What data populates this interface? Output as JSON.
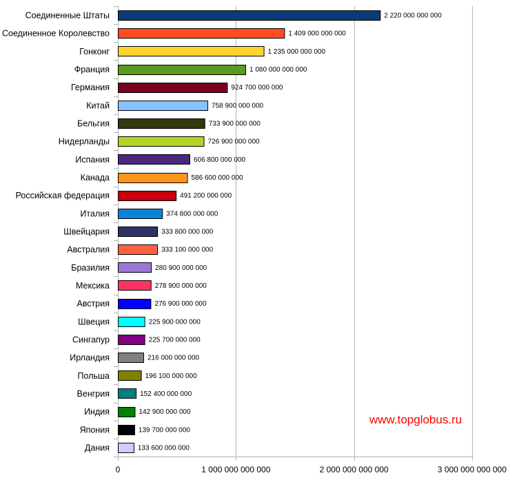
{
  "watermark": "www.topglobus.ru",
  "chart_data": {
    "type": "bar",
    "orientation": "horizontal",
    "title": "",
    "xlabel": "",
    "ylabel": "",
    "xlim": [
      0,
      3000000000000
    ],
    "grid": true,
    "legend": "none",
    "ticks": [
      {
        "value": 0,
        "label": "0"
      },
      {
        "value": 1000000000000,
        "label": "1 000 000 000 000"
      },
      {
        "value": 2000000000000,
        "label": "2 000 000 000 000"
      },
      {
        "value": 3000000000000,
        "label": "3 000 000 000 000"
      }
    ],
    "bars": [
      {
        "category": "Соединенные Штаты",
        "value": 2220000000000,
        "label": "2 220 000 000 000",
        "color": "#0b3c7a"
      },
      {
        "category": "Соединенное Королевство",
        "value": 1409000000000,
        "label": "1 409 000 000 000",
        "color": "#ff4b1f"
      },
      {
        "category": "Гонконг",
        "value": 1235000000000,
        "label": "1 235 000 000 000",
        "color": "#ffd32a"
      },
      {
        "category": "Франция",
        "value": 1080000000000,
        "label": "1 080 000 000 000",
        "color": "#5a9a1e"
      },
      {
        "category": "Германия",
        "value": 924700000000,
        "label": "924 700 000 000",
        "color": "#7a0022"
      },
      {
        "category": "Китай",
        "value": 758900000000,
        "label": "758 900 000 000",
        "color": "#86c2ff"
      },
      {
        "category": "Бельгия",
        "value": 733900000000,
        "label": "733 900 000 000",
        "color": "#2f3a0d"
      },
      {
        "category": "Нидерланды",
        "value": 726900000000,
        "label": "726 900 000 000",
        "color": "#b2d524"
      },
      {
        "category": "Испания",
        "value": 606800000000,
        "label": "606 800 000 000",
        "color": "#4b2782"
      },
      {
        "category": "Канада",
        "value": 586600000000,
        "label": "586 600 000 000",
        "color": "#ff951c"
      },
      {
        "category": "Российская федерация",
        "value": 491200000000,
        "label": "491 200 000 000",
        "color": "#c5000c"
      },
      {
        "category": "Италия",
        "value": 374800000000,
        "label": "374 800 000 000",
        "color": "#0a84d4"
      },
      {
        "category": "Швейцария",
        "value": 333800000000,
        "label": "333 800 000 000",
        "color": "#2e3166"
      },
      {
        "category": "Австралия",
        "value": 333100000000,
        "label": "333 100 000 000",
        "color": "#ff6040"
      },
      {
        "category": "Бразилия",
        "value": 280900000000,
        "label": "280 900 000 000",
        "color": "#9a79d6"
      },
      {
        "category": "Мексика",
        "value": 278900000000,
        "label": "278 900 000 000",
        "color": "#ff3366"
      },
      {
        "category": "Австрия",
        "value": 276900000000,
        "label": "276 900 000 000",
        "color": "#0000ff"
      },
      {
        "category": "Швеция",
        "value": 225900000000,
        "label": "225 900 000 000",
        "color": "#00ffff"
      },
      {
        "category": "Сингапур",
        "value": 225700000000,
        "label": "225 700 000 000",
        "color": "#800080"
      },
      {
        "category": "Ирландия",
        "value": 216000000000,
        "label": "216 000 000 000",
        "color": "#808080"
      },
      {
        "category": "Польша",
        "value": 196100000000,
        "label": "196 100 000 000",
        "color": "#808000"
      },
      {
        "category": "Венгрия",
        "value": 152400000000,
        "label": "152 400 000 000",
        "color": "#008080"
      },
      {
        "category": "Индия",
        "value": 142900000000,
        "label": "142 900 000 000",
        "color": "#008000"
      },
      {
        "category": "Япония",
        "value": 139700000000,
        "label": "139 700 000 000",
        "color": "#000000"
      },
      {
        "category": "Дания",
        "value": 133600000000,
        "label": "133 600 000 000",
        "color": "#ccccff"
      }
    ]
  }
}
